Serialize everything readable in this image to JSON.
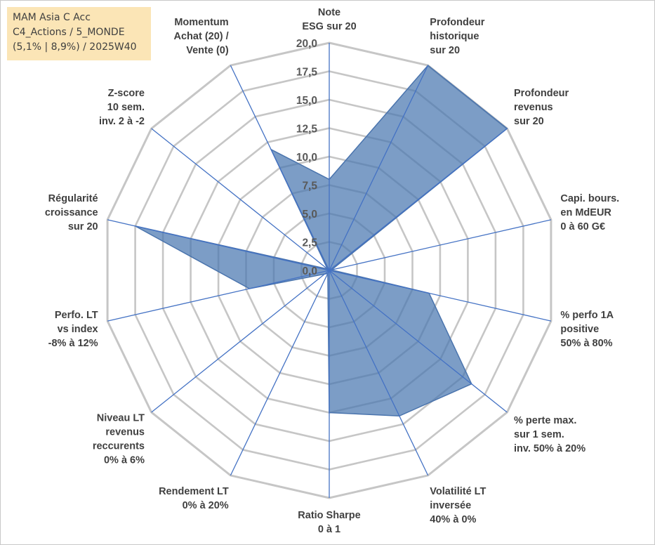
{
  "info": {
    "line1": "MAM Asia C Acc",
    "line2": "C4_Actions / 5_MONDE",
    "line3": "(5,1% | 8,9%) / 2025W40"
  },
  "colors": {
    "fill": "#4a77b0",
    "fill_opacity": 0.72,
    "stroke": "#4a74ad",
    "grid": "#c6c6c6",
    "spoke": "#4472c4",
    "info_bg": "#fbe5b6"
  },
  "chart_data": {
    "type": "radar",
    "rmin": 0,
    "rmax": 20,
    "tick_step": 2.5,
    "tick_labels": [
      "0,0",
      "2,5",
      "5,0",
      "7,5",
      "10,0",
      "12,5",
      "15,0",
      "17,5",
      "20,0"
    ],
    "categories": [
      [
        "Note",
        "ESG sur 20"
      ],
      [
        "Profondeur",
        "historique",
        "sur 20"
      ],
      [
        "Profondeur",
        "revenus",
        "sur 20"
      ],
      [
        "Capi. bours.",
        "en MdEUR",
        "0 à 60 G€"
      ],
      [
        "% perfo 1A",
        "positive",
        "50% à 80%"
      ],
      [
        "% perte max.",
        "sur 1 sem.",
        "inv. 50% à 20%"
      ],
      [
        "Volatilité LT",
        "inversée",
        "40% à 0%"
      ],
      [
        "Ratio Sharpe",
        "0 à 1"
      ],
      [
        "Rendement LT",
        "0% à 20%"
      ],
      [
        "Niveau LT",
        "revenus",
        "reccurents",
        "0% à 6%"
      ],
      [
        "Perfo. LT",
        "vs index",
        "-8% à 12%"
      ],
      [
        "Régularité",
        "croissance",
        "sur 20"
      ],
      [
        "Z-score",
        "10 sem.",
        "inv. 2 à -2"
      ],
      [
        "Momentum",
        "Achat (20) /",
        "Vente (0)"
      ]
    ],
    "series": [
      {
        "values": [
          8.0,
          20.0,
          20.0,
          0.2,
          9.0,
          16.0,
          14.2,
          12.5,
          0.3,
          0.5,
          7.2,
          17.5,
          0.2,
          11.8
        ]
      }
    ],
    "grid": true
  }
}
